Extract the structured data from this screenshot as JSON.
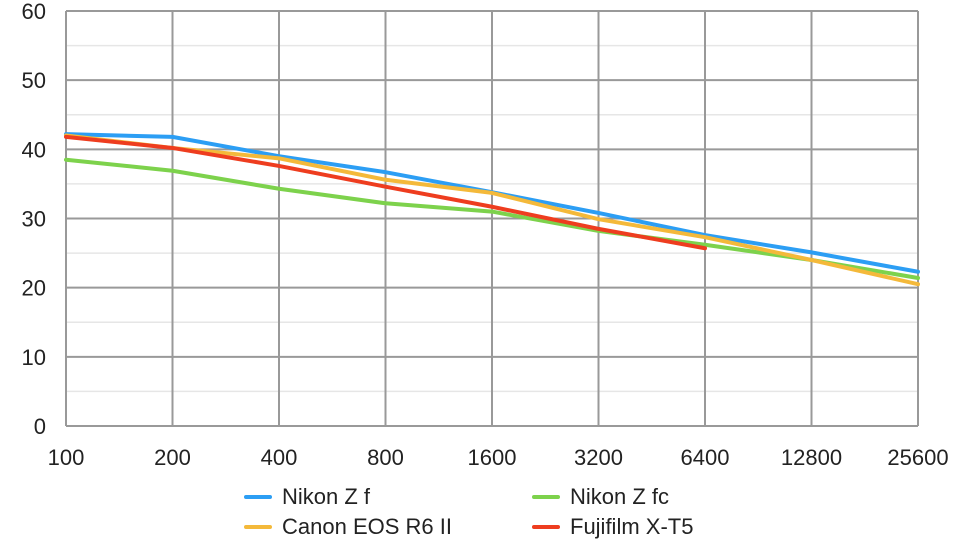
{
  "chart_data": {
    "type": "line",
    "title": "",
    "xlabel": "",
    "ylabel": "",
    "x": [
      "100",
      "200",
      "400",
      "800",
      "1600",
      "3200",
      "6400",
      "12800",
      "25600"
    ],
    "x_scale": "log2 (categorical ISO steps)",
    "ylim": [
      0,
      60
    ],
    "yticks": [
      0,
      10,
      20,
      30,
      40,
      50,
      60
    ],
    "grid": true,
    "legend_position": "bottom",
    "series": [
      {
        "name": "Nikon Z f",
        "color": "#2c9ef4",
        "values": [
          42.2,
          41.8,
          39.0,
          36.7,
          33.8,
          30.8,
          27.6,
          25.1,
          22.3
        ]
      },
      {
        "name": "Nikon Z fc",
        "color": "#7dd24c",
        "values": [
          38.5,
          36.9,
          34.3,
          32.2,
          31.0,
          28.2,
          26.2,
          24.0,
          21.4
        ]
      },
      {
        "name": "Canon EOS R6 II",
        "color": "#f4b93a",
        "values": [
          42.0,
          40.2,
          38.7,
          35.6,
          33.7,
          29.9,
          27.3,
          24.0,
          20.5
        ]
      },
      {
        "name": "Fujifilm X-T5",
        "color": "#ee3d1f",
        "values": [
          41.8,
          40.2,
          37.6,
          34.6,
          31.7,
          28.5,
          25.7,
          null,
          null
        ]
      }
    ]
  }
}
